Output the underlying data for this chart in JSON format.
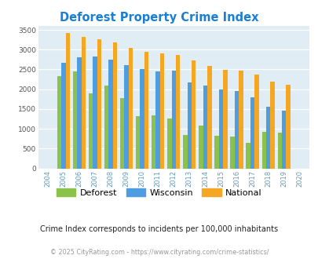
{
  "title": "Deforest Property Crime Index",
  "years": [
    2004,
    2005,
    2006,
    2007,
    2008,
    2009,
    2010,
    2011,
    2012,
    2013,
    2014,
    2015,
    2016,
    2017,
    2018,
    2019,
    2020
  ],
  "deforest": [
    null,
    2340,
    2450,
    1890,
    2090,
    1780,
    1310,
    1330,
    1260,
    840,
    1090,
    820,
    800,
    650,
    930,
    900,
    null
  ],
  "wisconsin": [
    null,
    2670,
    2800,
    2830,
    2750,
    2600,
    2500,
    2450,
    2470,
    2180,
    2090,
    1990,
    1950,
    1800,
    1550,
    1460,
    null
  ],
  "national": [
    null,
    3420,
    3330,
    3260,
    3190,
    3040,
    2950,
    2900,
    2860,
    2720,
    2580,
    2490,
    2460,
    2370,
    2200,
    2110,
    null
  ],
  "deforest_color": "#8bc34a",
  "wisconsin_color": "#4d9de0",
  "national_color": "#f5a623",
  "plot_bg": "#e0edf5",
  "ylabel_vals": [
    0,
    500,
    1000,
    1500,
    2000,
    2500,
    3000,
    3500
  ],
  "ylim": [
    0,
    3600
  ],
  "subtitle": "Crime Index corresponds to incidents per 100,000 inhabitants",
  "footer": "© 2025 CityRating.com - https://www.cityrating.com/crime-statistics/",
  "title_color": "#1a7fd4",
  "subtitle_color": "#222222",
  "footer_color": "#999999",
  "xtick_color": "#6699bb"
}
